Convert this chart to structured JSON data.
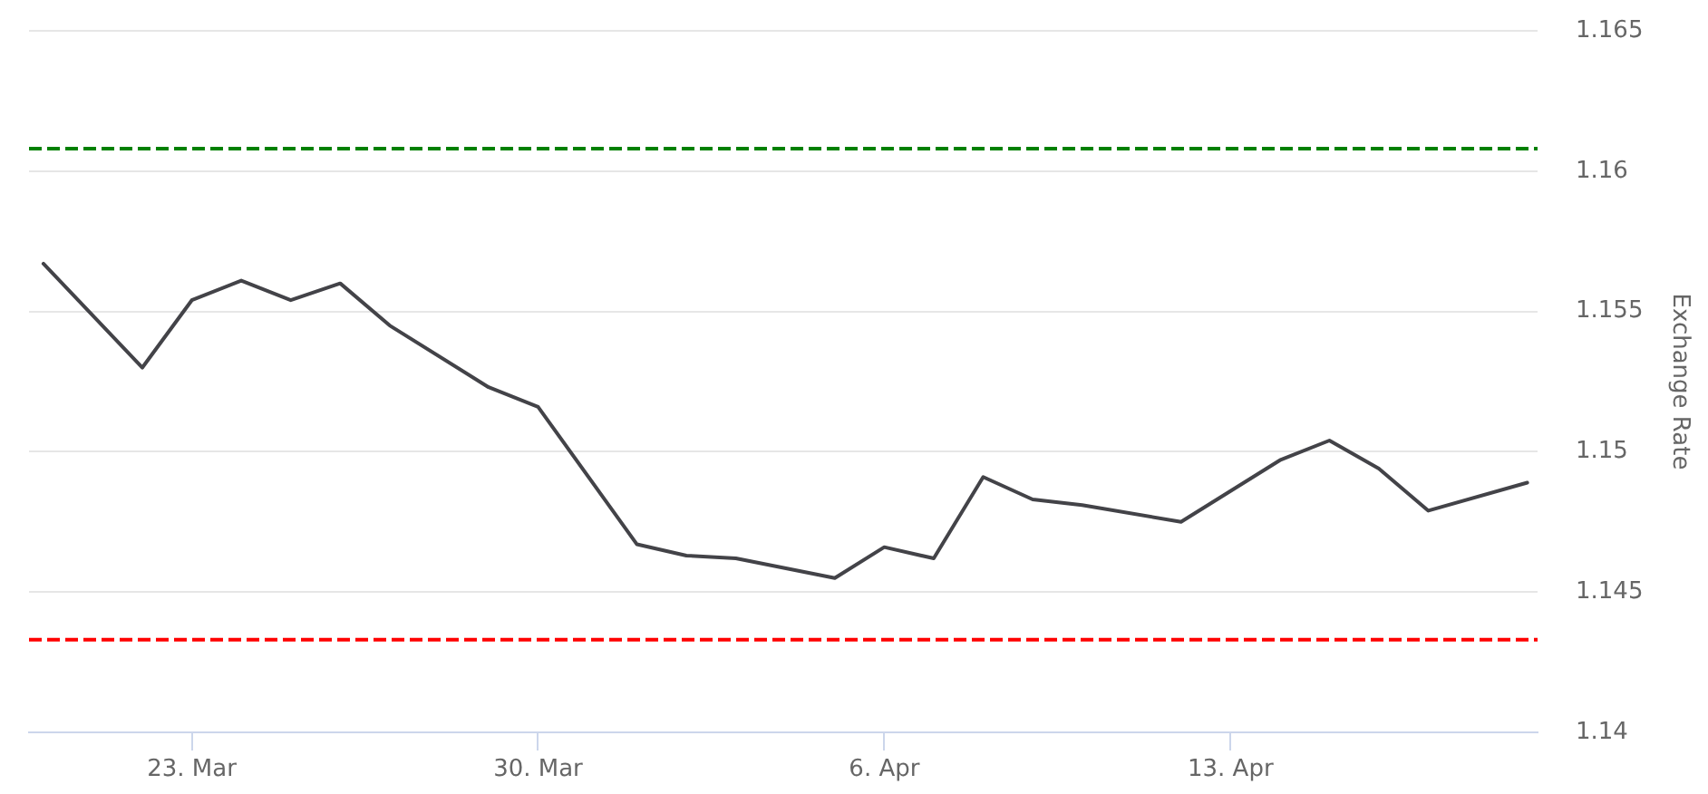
{
  "chart_data": {
    "type": "line",
    "ylabel": "Exchange Rate",
    "x": [
      "--03-20",
      "--03-22",
      "--03-23",
      "--03-24",
      "--03-25",
      "--03-26",
      "--03-27",
      "--03-29",
      "--03-30",
      "--04-01",
      "--04-02",
      "--04-03",
      "--04-05",
      "--04-06",
      "--04-07",
      "--04-08",
      "--04-09",
      "--04-10",
      "--04-12",
      "--04-14",
      "--04-15",
      "--04-16",
      "--04-17",
      "--04-19"
    ],
    "values": [
      1.1567,
      1.153,
      1.1554,
      1.1561,
      1.1554,
      1.156,
      1.1545,
      1.1523,
      1.1516,
      1.1467,
      1.1463,
      1.1462,
      1.1455,
      1.1466,
      1.1462,
      1.1491,
      1.1483,
      1.1481,
      1.1475,
      1.1497,
      1.1504,
      1.1494,
      1.1479,
      1.1489
    ],
    "color": "#434348",
    "xlim": [
      "--03-19T17:00",
      "--04-19T05:00"
    ],
    "xticks": [
      {
        "value": "--03-23",
        "label": "23. Mar"
      },
      {
        "value": "--03-30",
        "label": "30. Mar"
      },
      {
        "value": "--04-06",
        "label": "6. Apr"
      },
      {
        "value": "--04-13",
        "label": "13. Apr"
      }
    ],
    "ylim": [
      1.14,
      1.165
    ],
    "yticks": [
      1.14,
      1.145,
      1.15,
      1.155,
      1.16,
      1.165
    ],
    "ref_lines": [
      {
        "axis": "y",
        "value": 1.1608,
        "color": "#008000",
        "line_style": "dashed"
      },
      {
        "axis": "y",
        "value": 1.1433,
        "color": "#ff0000",
        "line_style": "dashed"
      }
    ],
    "grid": "y",
    "marker": "none",
    "line_style": "solid"
  }
}
